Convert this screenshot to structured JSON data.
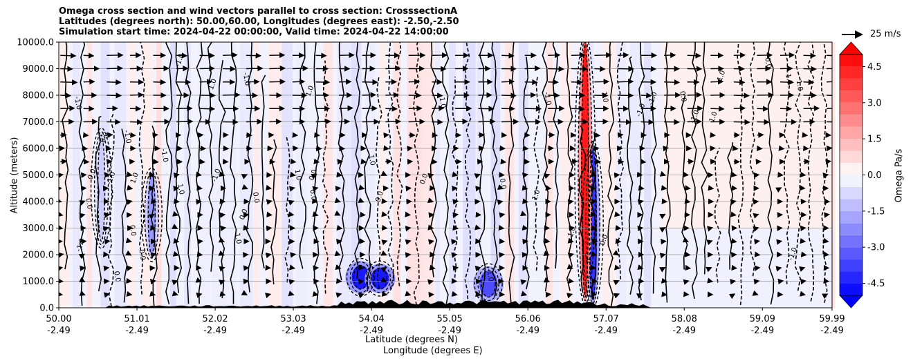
{
  "chart_data": {
    "type": "contour",
    "title_lines": [
      "Omega cross section and wind vectors parallel to cross section: CrosssectionA",
      "Latitudes (degrees north): 50.00,60.00, Longitudes (degrees east): -2.50,-2.50",
      "Simulation start time: 2024-04-22 00:00:00, Valid time: 2024-04-22 14:00:00"
    ],
    "ylabel": "Altitude (meters)",
    "xlabel_lat": "Latitude (degrees N)",
    "xlabel_lon": "Longitude (degrees E)",
    "ylim": [
      0,
      10000
    ],
    "y_ticks": [
      "0.0",
      "1000.0",
      "2000.0",
      "3000.0",
      "4000.0",
      "5000.0",
      "6000.0",
      "7000.0",
      "8000.0",
      "9000.0",
      "10000.0"
    ],
    "y_tick_values": [
      0,
      1000,
      2000,
      3000,
      4000,
      5000,
      6000,
      7000,
      8000,
      9000,
      10000
    ],
    "xlim": [
      50.0,
      59.99
    ],
    "x_tick_values": [
      50.0,
      51.01,
      52.02,
      53.03,
      54.04,
      55.05,
      56.06,
      57.07,
      58.08,
      59.09,
      59.99
    ],
    "x_tick_lat": [
      "50.00",
      "51.01",
      "52.02",
      "53.03",
      "54.04",
      "55.05",
      "56.06",
      "57.07",
      "58.08",
      "59.09",
      "59.99"
    ],
    "x_tick_lon": [
      "-2.49",
      "-2.49",
      "-2.49",
      "-2.49",
      "-2.49",
      "-2.49",
      "-2.49",
      "-2.49",
      "-2.49",
      "-2.49",
      "-2.49"
    ],
    "colorbar": {
      "label": "Omega Pa/s",
      "min": -5.0,
      "max": 5.0,
      "step": 0.5,
      "ticks": [
        "-4.5",
        "-3.0",
        "-1.5",
        "0.0",
        "1.5",
        "3.0",
        "4.5"
      ],
      "tick_values": [
        -4.5,
        -3.0,
        -1.5,
        0.0,
        1.5,
        3.0,
        4.5
      ],
      "extend": "both",
      "cmap": "bwr"
    },
    "reference_vector": {
      "label": "25 m/s",
      "speed": 25
    },
    "contour_line_labels": [
      "0.0",
      "-1.0",
      "1.0"
    ],
    "wind_vectors": {
      "upper_layer_min_altitude": 7000,
      "direction": "northward"
    },
    "features": [
      {
        "label": "strong ascent (negative omega)",
        "lat": 53.9,
        "alt_min": 700,
        "alt_max": 1600,
        "value": -4.5
      },
      {
        "label": "strong ascent (negative omega)",
        "lat": 54.15,
        "alt_min": 700,
        "alt_max": 1500,
        "value": -4.5
      },
      {
        "label": "ascent (negative omega)",
        "lat": 55.55,
        "alt_min": 400,
        "alt_max": 1400,
        "value": -3.5
      },
      {
        "label": "ascent column (negative omega)",
        "lat": 56.9,
        "alt_min": 300,
        "alt_max": 6000,
        "value": -4.0
      },
      {
        "label": "descent column (positive omega)",
        "lat": 56.8,
        "alt_min": 400,
        "alt_max": 10000,
        "value": 4.5
      },
      {
        "label": "ascent column (negative omega)",
        "lat": 51.2,
        "alt_min": 2000,
        "alt_max": 5000,
        "value": -2.0
      },
      {
        "label": "ascent column (negative omega)",
        "lat": 50.55,
        "alt_min": 2500,
        "alt_max": 6500,
        "value": -1.0
      }
    ],
    "terrain": "surface orography shown in black, highest between 53.9 and 56.9 N"
  }
}
